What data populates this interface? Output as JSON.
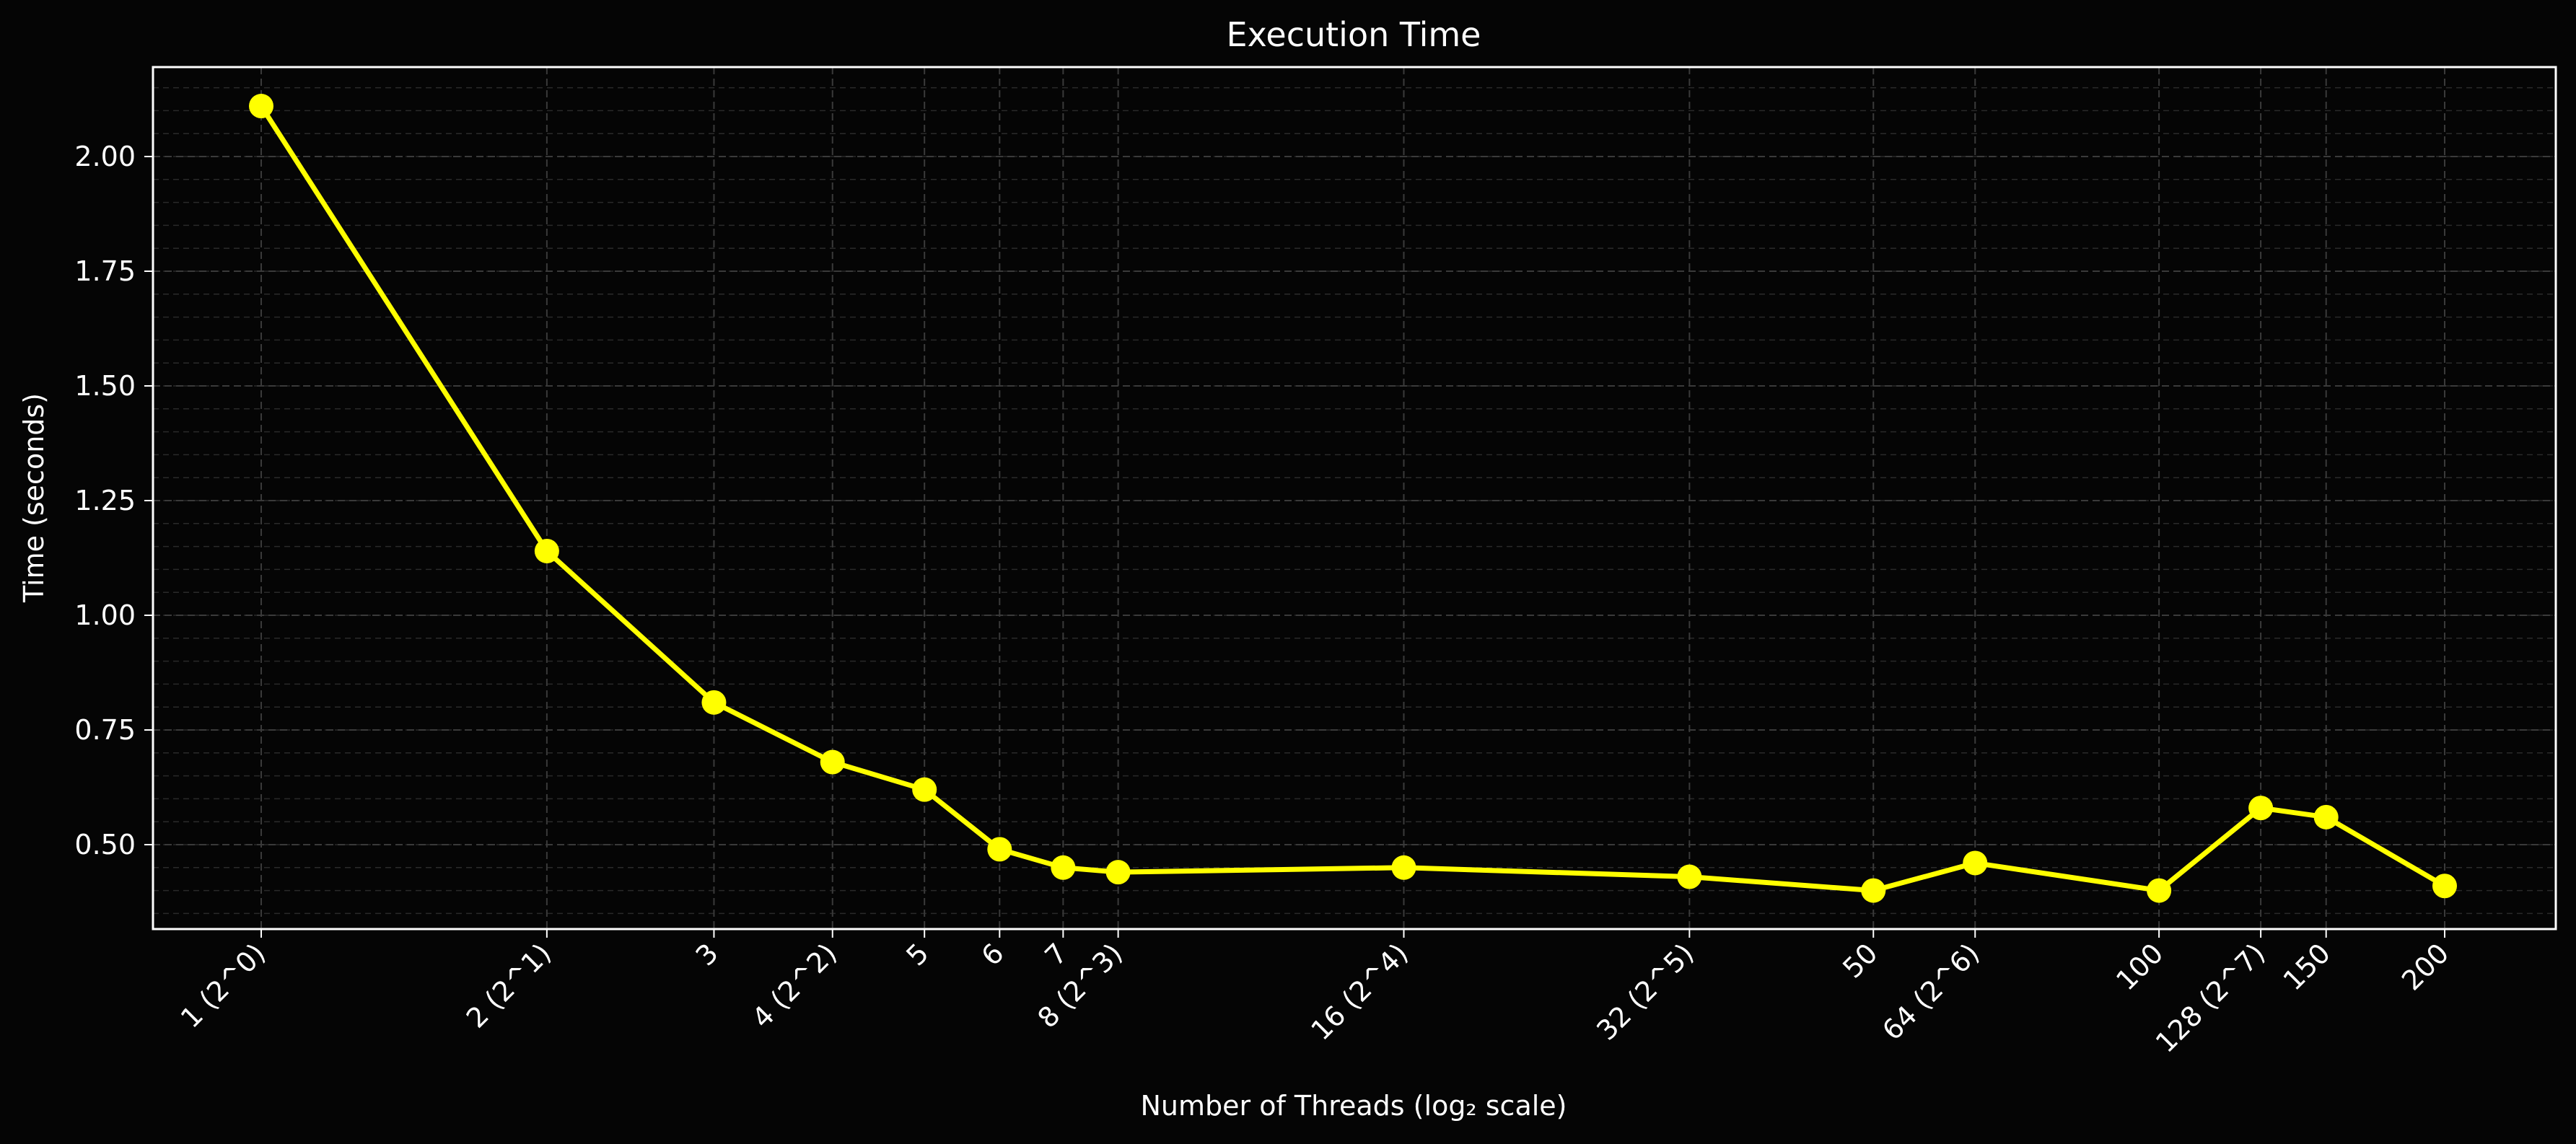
{
  "chart_data": {
    "type": "line",
    "title": "Execution Time",
    "xlabel": "Number of Threads (log₂ scale)",
    "ylabel": "Time (seconds)",
    "x_scale": "log2",
    "grid": true,
    "ylim": [
      0.3,
      2.2
    ],
    "x": [
      1,
      2,
      3,
      4,
      5,
      6,
      7,
      8,
      16,
      32,
      50,
      64,
      100,
      128,
      150,
      200
    ],
    "x_tick_labels": [
      "1 (2^0)",
      "2 (2^1)",
      "3",
      "4 (2^2)",
      "5",
      "6",
      "7",
      "8 (2^3)",
      "16 (2^4)",
      "32 (2^5)",
      "50",
      "64 (2^6)",
      "100",
      "128 (2^7)",
      "150",
      "200"
    ],
    "y_ticks": [
      "0.50",
      "0.75",
      "1.00",
      "1.25",
      "1.50",
      "1.75",
      "2.00"
    ],
    "series": [
      {
        "color": "#ffff00",
        "values": [
          2.11,
          1.14,
          0.81,
          0.68,
          0.62,
          0.49,
          0.45,
          0.44,
          0.45,
          0.43,
          0.4,
          0.46,
          0.4,
          0.58,
          0.56,
          0.41
        ]
      }
    ]
  }
}
